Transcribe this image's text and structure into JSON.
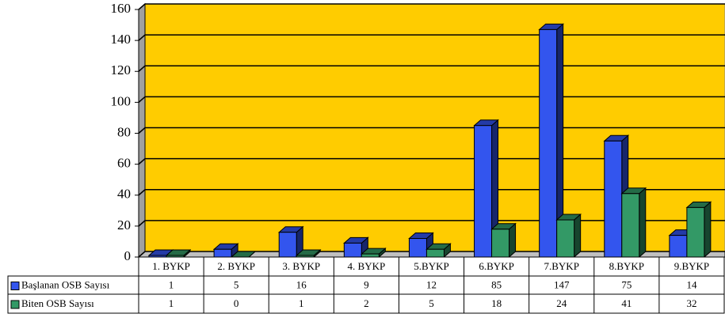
{
  "chart_data": {
    "type": "bar3d",
    "categories": [
      "1. BYKP",
      "2. BYKP",
      "3. BYKP",
      "4. BYKP",
      "5.BYKP",
      "6.BYKP",
      "7.BYKP",
      "8.BYKP",
      "9.BYKP"
    ],
    "series": [
      {
        "name": "Başlanan OSB Sayısı",
        "color": "#3355ee",
        "values": [
          1,
          5,
          16,
          9,
          12,
          85,
          147,
          75,
          14
        ]
      },
      {
        "name": "Biten OSB Sayısı",
        "color": "#339966",
        "values": [
          1,
          0,
          1,
          2,
          5,
          18,
          24,
          41,
          32
        ]
      }
    ],
    "ylim": [
      0,
      160
    ],
    "yticks": [
      0,
      20,
      40,
      60,
      80,
      100,
      120,
      140,
      160
    ],
    "grid": true,
    "background": "#ffcc00"
  }
}
